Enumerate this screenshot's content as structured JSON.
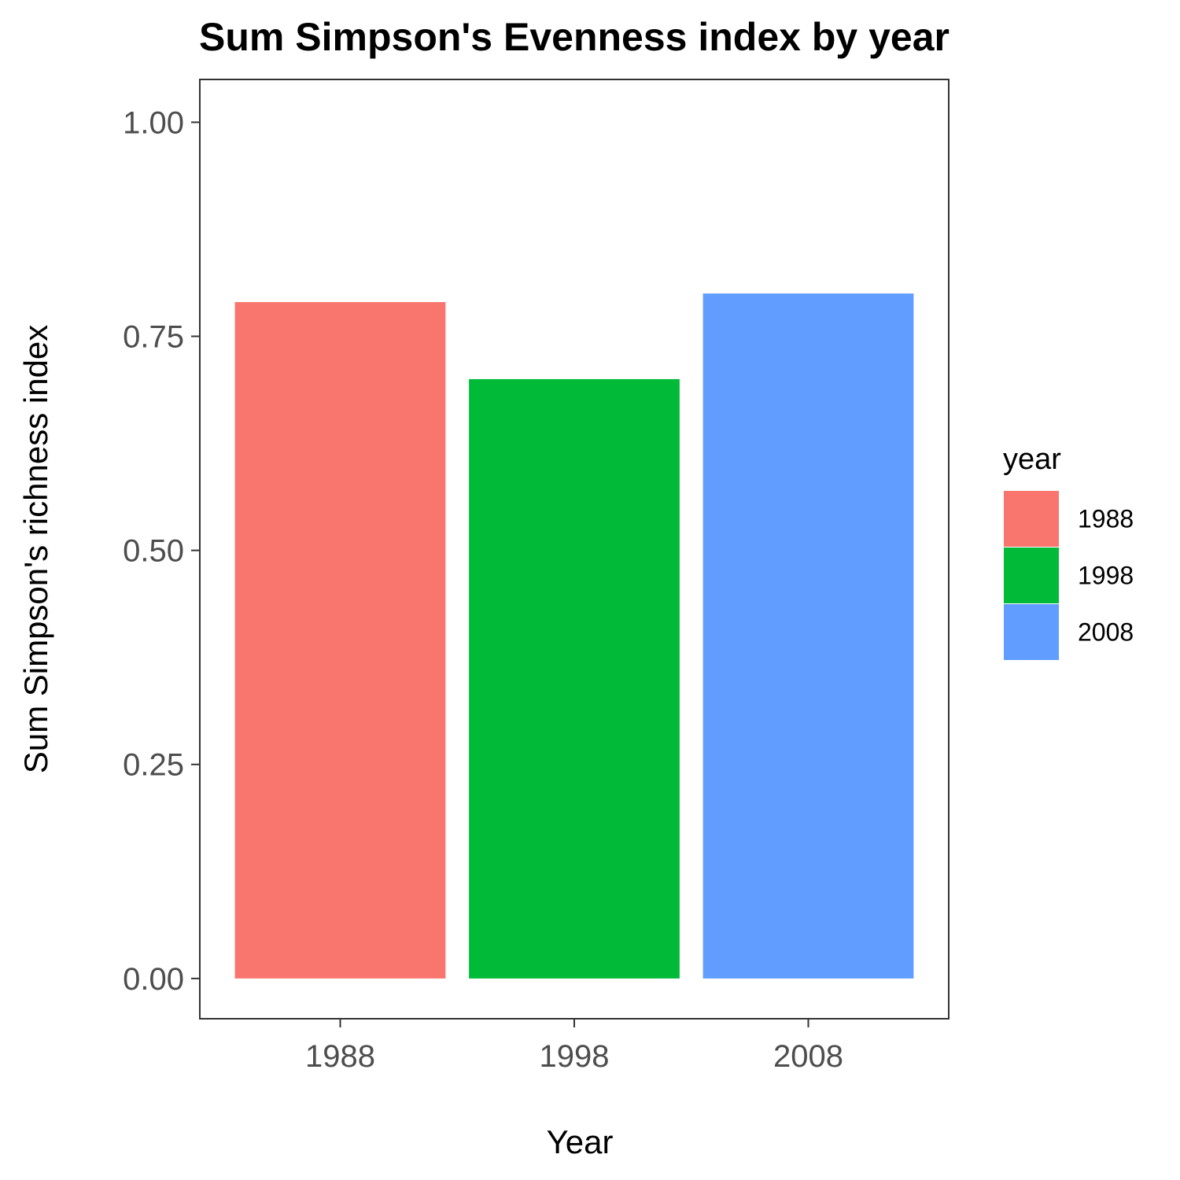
{
  "chart_data": {
    "type": "bar",
    "title": "Sum Simpson's Evenness index by year",
    "xlabel": "Year",
    "ylabel": "Sum Simpson's richness index",
    "categories": [
      "1988",
      "1998",
      "2008"
    ],
    "values": [
      0.79,
      0.7,
      0.8
    ],
    "colors": [
      "#F8766D",
      "#00BA38",
      "#619CFF"
    ],
    "ylim": [
      -0.047,
      1.05
    ],
    "yticks": [
      0,
      0.25,
      0.5,
      0.75,
      1.0
    ],
    "ytick_labels": [
      "0.00",
      "0.25",
      "0.50",
      "0.75",
      "1.00"
    ],
    "grid": false,
    "legend": {
      "title": "year",
      "position": "right",
      "entries": [
        "1988",
        "1998",
        "2008"
      ]
    }
  }
}
